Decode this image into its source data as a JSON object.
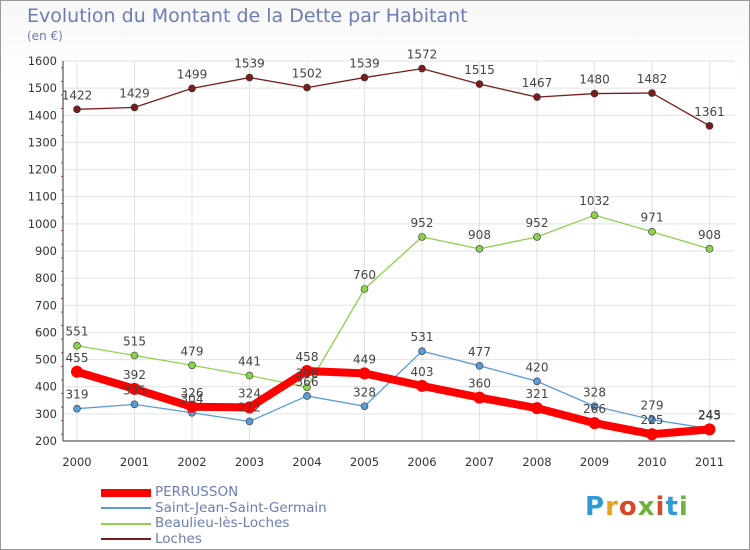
{
  "title": "Evolution du Montant de la Dette par Habitant",
  "subtitle": "(en €)",
  "logo_text": "Proxiti",
  "chart_data": {
    "type": "line",
    "title": "Evolution du Montant de la Dette par Habitant",
    "subtitle": "(en €)",
    "x": [
      "2000",
      "2001",
      "2002",
      "2003",
      "2004",
      "2005",
      "2006",
      "2007",
      "2008",
      "2009",
      "2010",
      "2011"
    ],
    "ylim": [
      200,
      1600
    ],
    "yticks": [
      200,
      300,
      400,
      500,
      600,
      700,
      800,
      900,
      1000,
      1100,
      1200,
      1300,
      1400,
      1500,
      1600
    ],
    "grid": true,
    "legend_position": "bottom-left",
    "series": [
      {
        "name": "PERRUSSON",
        "color": "#ff0000",
        "values": [
          455,
          392,
          326,
          324,
          458,
          449,
          403,
          360,
          321,
          266,
          225,
          243
        ]
      },
      {
        "name": "Saint-Jean-Saint-Germain",
        "color": "#5b9bd5",
        "values": [
          319,
          335,
          304,
          272,
          366,
          328,
          531,
          477,
          420,
          328,
          279,
          245
        ]
      },
      {
        "name": "Beaulieu-lès-Loches",
        "color": "#8fd14f",
        "values": [
          551,
          515,
          479,
          441,
          398,
          760,
          952,
          908,
          952,
          1032,
          971,
          908
        ]
      },
      {
        "name": "Loches",
        "color": "#7a1c1c",
        "values": [
          1422,
          1429,
          1499,
          1539,
          1502,
          1539,
          1572,
          1515,
          1467,
          1480,
          1482,
          1361
        ]
      }
    ],
    "point_labels": [
      {
        "series": "PERRUSSON",
        "labels": [
          "455",
          "392",
          "326",
          "324",
          "458",
          "449",
          "403",
          "360",
          "321",
          "266",
          "225",
          "243"
        ]
      },
      {
        "series": "Saint-Jean-Saint-Germain",
        "labels": [
          "319",
          "335",
          "304",
          "272",
          "366",
          "328",
          "531",
          "477",
          "420",
          "328",
          "279",
          "245"
        ]
      },
      {
        "series": "Beaulieu-lès-Loches",
        "labels": [
          "551",
          "515",
          "479",
          "441",
          "398",
          "760",
          "952",
          "908",
          "952",
          "1032",
          "971",
          "908"
        ]
      },
      {
        "series": "Loches",
        "labels": [
          "1422",
          "1429",
          "1499",
          "1539",
          "1502",
          "1539",
          "1572",
          "1515",
          "1467",
          "1480",
          "1482",
          "1361"
        ]
      }
    ]
  }
}
